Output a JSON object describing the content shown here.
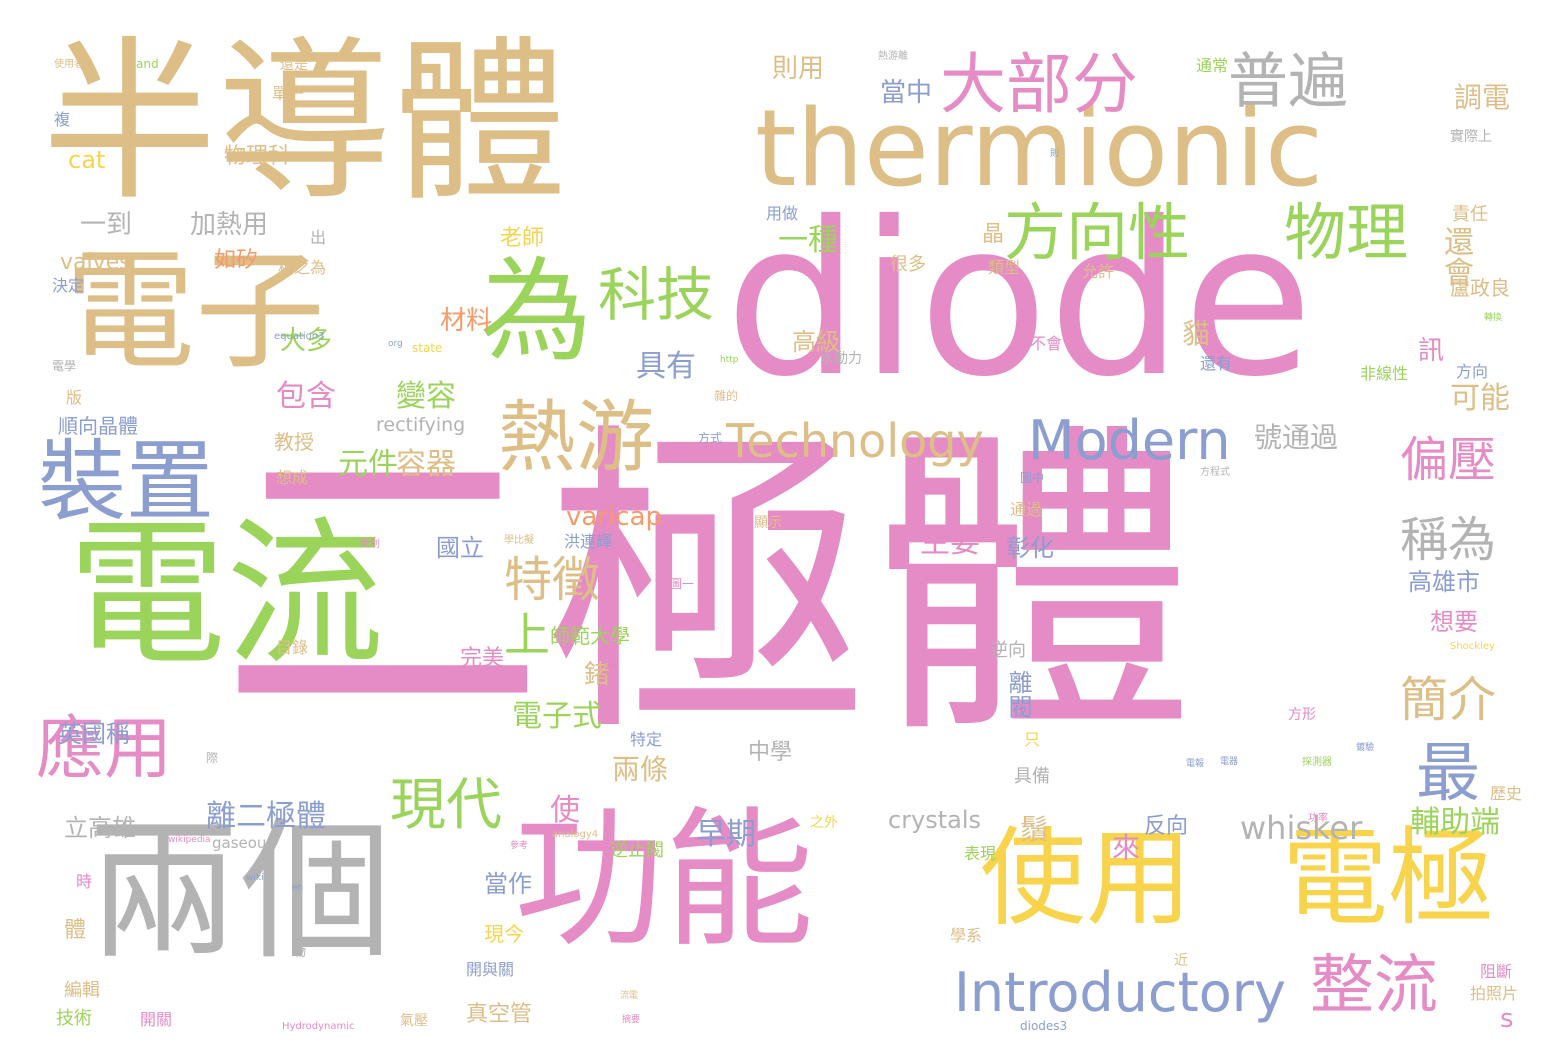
{
  "palette": {
    "tan": "#DDBE87",
    "pink": "#E58BC5",
    "green": "#9BD45A",
    "gray": "#B3B3B3",
    "blue": "#8C9ED0",
    "yellow": "#F7D44B",
    "orange": "#F79A6A",
    "white": "#FFFFFF"
  },
  "words": [
    {
      "text": "二極體",
      "color": "pink"
    },
    {
      "text": "diode",
      "color": "pink"
    },
    {
      "text": "半導體",
      "color": "tan"
    },
    {
      "text": "電流",
      "color": "green"
    },
    {
      "text": "兩個",
      "color": "gray"
    },
    {
      "text": "功能",
      "color": "pink"
    },
    {
      "text": "電子",
      "color": "tan"
    },
    {
      "text": "thermionic",
      "color": "tan"
    },
    {
      "text": "使用",
      "color": "yellow"
    },
    {
      "text": "電極",
      "color": "yellow"
    },
    {
      "text": "為",
      "color": "green"
    },
    {
      "text": "裝置",
      "color": "blue"
    },
    {
      "text": "熱游",
      "color": "tan"
    },
    {
      "text": "應用",
      "color": "pink"
    },
    {
      "text": "大部分",
      "color": "pink"
    },
    {
      "text": "普遍",
      "color": "gray"
    },
    {
      "text": "方向性",
      "color": "green"
    },
    {
      "text": "物理",
      "color": "green"
    },
    {
      "text": "科技",
      "color": "green"
    },
    {
      "text": "Modern",
      "color": "blue"
    },
    {
      "text": "Technology",
      "color": "tan"
    },
    {
      "text": "Introductory",
      "color": "blue"
    },
    {
      "text": "整流",
      "color": "pink"
    },
    {
      "text": "現代",
      "color": "green"
    },
    {
      "text": "最",
      "color": "blue"
    },
    {
      "text": "稱為",
      "color": "gray"
    },
    {
      "text": "偏壓",
      "color": "pink"
    },
    {
      "text": "簡介",
      "color": "tan"
    },
    {
      "text": "特徵",
      "color": "tan"
    },
    {
      "text": "上",
      "color": "green"
    },
    {
      "text": "whisker",
      "color": "gray"
    },
    {
      "text": "crystals",
      "color": "gray"
    },
    {
      "text": "離二極體",
      "color": "blue"
    },
    {
      "text": "varicap",
      "color": "orange"
    },
    {
      "text": "rectifying",
      "color": "gray"
    },
    {
      "text": "valves",
      "color": "tan"
    },
    {
      "text": "cat",
      "color": "yellow"
    },
    {
      "text": "gaseous",
      "color": "gray"
    },
    {
      "text": "一到",
      "color": "gray"
    },
    {
      "text": "加熱用",
      "color": "gray"
    },
    {
      "text": "如矽",
      "color": "orange"
    },
    {
      "text": "老師",
      "color": "yellow"
    },
    {
      "text": "一種",
      "color": "green"
    },
    {
      "text": "晶",
      "color": "tan"
    },
    {
      "text": "還會",
      "color": "tan"
    },
    {
      "text": "調電",
      "color": "tan"
    },
    {
      "text": "訊",
      "color": "pink"
    },
    {
      "text": "貓",
      "color": "tan"
    },
    {
      "text": "具有",
      "color": "blue"
    },
    {
      "text": "包含",
      "color": "pink"
    },
    {
      "text": "變容",
      "color": "green"
    },
    {
      "text": "元件",
      "color": "green"
    },
    {
      "text": "容器",
      "color": "tan"
    },
    {
      "text": "材料",
      "color": "orange"
    },
    {
      "text": "大多",
      "color": "green"
    },
    {
      "text": "號通過",
      "color": "gray"
    },
    {
      "text": "可能",
      "color": "tan"
    },
    {
      "text": "高級",
      "color": "tan"
    },
    {
      "text": "當中",
      "color": "blue"
    },
    {
      "text": "則用",
      "color": "tan"
    },
    {
      "text": "物理科",
      "color": "tan"
    },
    {
      "text": "電子式",
      "color": "green"
    },
    {
      "text": "早期",
      "color": "blue"
    },
    {
      "text": "兩條",
      "color": "tan"
    },
    {
      "text": "使",
      "color": "pink"
    },
    {
      "text": "鬚",
      "color": "tan"
    },
    {
      "text": "來",
      "color": "pink"
    },
    {
      "text": "反向",
      "color": "blue"
    },
    {
      "text": "輔助端",
      "color": "green"
    },
    {
      "text": "主要",
      "color": "pink"
    },
    {
      "text": "彰化",
      "color": "blue"
    },
    {
      "text": "國立",
      "color": "blue"
    },
    {
      "text": "洪連輝",
      "color": "blue"
    },
    {
      "text": "師範大學",
      "color": "green"
    },
    {
      "text": "完美",
      "color": "pink"
    },
    {
      "text": "鍺",
      "color": "tan"
    },
    {
      "text": "英國稱",
      "color": "blue"
    },
    {
      "text": "立高雄",
      "color": "gray"
    },
    {
      "text": "當作",
      "color": "blue"
    },
    {
      "text": "現今",
      "color": "yellow"
    },
    {
      "text": "體",
      "color": "tan"
    },
    {
      "text": "真空管",
      "color": "tan"
    },
    {
      "text": "高雄市",
      "color": "blue"
    },
    {
      "text": "想要",
      "color": "pink"
    },
    {
      "text": "離閥",
      "color": "blue"
    },
    {
      "text": "順向晶體",
      "color": "blue"
    },
    {
      "text": "教授",
      "color": "tan"
    },
    {
      "text": "中學",
      "color": "gray"
    },
    {
      "text": "s",
      "color": "pink"
    },
    {
      "text": "盧政良",
      "color": "tan"
    },
    {
      "text": "方向",
      "color": "blue"
    },
    {
      "text": "非線性",
      "color": "green"
    },
    {
      "text": "歷史",
      "color": "tan"
    },
    {
      "text": "實際上",
      "color": "gray"
    },
    {
      "text": "責任",
      "color": "tan"
    },
    {
      "text": "通常",
      "color": "green"
    },
    {
      "text": "拍照片",
      "color": "tan"
    },
    {
      "text": "阻斷",
      "color": "pink"
    },
    {
      "text": "逆止閥",
      "color": "green"
    },
    {
      "text": "編輯",
      "color": "tan"
    },
    {
      "text": "技術",
      "color": "green"
    },
    {
      "text": "開關",
      "color": "pink"
    },
    {
      "text": "開與關",
      "color": "blue"
    },
    {
      "text": "學系",
      "color": "tan"
    },
    {
      "text": "氣壓",
      "color": "tan"
    },
    {
      "text": "表現",
      "color": "green"
    },
    {
      "text": "逆向",
      "color": "gray"
    },
    {
      "text": "具備",
      "color": "gray"
    },
    {
      "text": "只",
      "color": "yellow"
    },
    {
      "text": "通過",
      "color": "tan"
    },
    {
      "text": "顯示",
      "color": "tan"
    },
    {
      "text": "特定",
      "color": "blue"
    },
    {
      "text": "想成",
      "color": "tan"
    },
    {
      "text": "目錄",
      "color": "tan"
    },
    {
      "text": "版",
      "color": "tan"
    },
    {
      "text": "時",
      "color": "pink"
    },
    {
      "text": "決定",
      "color": "blue"
    },
    {
      "text": "電學",
      "color": "gray"
    },
    {
      "text": "複",
      "color": "blue"
    },
    {
      "text": "稱之為",
      "color": "tan"
    },
    {
      "text": "允許",
      "color": "tan"
    },
    {
      "text": "類型",
      "color": "tan"
    },
    {
      "text": "很多",
      "color": "tan"
    },
    {
      "text": "並不會",
      "color": "pink"
    },
    {
      "text": "還有",
      "color": "blue"
    },
    {
      "text": "水動力",
      "color": "gray"
    },
    {
      "text": "用做",
      "color": "blue"
    },
    {
      "text": "出",
      "color": "gray"
    },
    {
      "text": "單一",
      "color": "tan"
    },
    {
      "text": "還是",
      "color": "tan"
    },
    {
      "text": "and",
      "color": "green"
    },
    {
      "text": "使用者",
      "color": "tan"
    },
    {
      "text": "Hydrodynamic",
      "color": "pink"
    },
    {
      "text": "diodes3",
      "color": "blue"
    },
    {
      "text": "Shockley",
      "color": "yellow"
    },
    {
      "text": "state",
      "color": "yellow"
    },
    {
      "text": "equation3",
      "color": "blue"
    },
    {
      "text": "analogy4",
      "color": "tan"
    },
    {
      "text": "wikipedia",
      "color": "pink"
    },
    {
      "text": "org",
      "color": "blue"
    },
    {
      "text": "http",
      "color": "green"
    },
    {
      "text": "wiki",
      "color": "blue"
    },
    {
      "text": "en",
      "color": "blue"
    },
    {
      "text": "之外",
      "color": "yellow"
    },
    {
      "text": "方形",
      "color": "pink"
    },
    {
      "text": "方程式",
      "color": "gray"
    },
    {
      "text": "圖中",
      "color": "blue"
    },
    {
      "text": "圖一",
      "color": "pink"
    },
    {
      "text": "方式",
      "color": "blue"
    },
    {
      "text": "雜的",
      "color": "tan"
    },
    {
      "text": "熱游離",
      "color": "gray"
    },
    {
      "text": "數",
      "color": "tan"
    },
    {
      "text": "則",
      "color": "blue"
    },
    {
      "text": "電器",
      "color": "blue"
    },
    {
      "text": "學比擬",
      "color": "tan"
    },
    {
      "text": "死利",
      "color": "pink"
    },
    {
      "text": "參考",
      "color": "pink"
    },
    {
      "text": "際",
      "color": "gray"
    },
    {
      "text": "近",
      "color": "tan"
    },
    {
      "text": "物",
      "color": "gray"
    },
    {
      "text": "功率",
      "color": "pink"
    },
    {
      "text": "探測器",
      "color": "green"
    },
    {
      "text": "電報",
      "color": "blue"
    },
    {
      "text": "鍍驗",
      "color": "blue"
    },
    {
      "text": "轉換",
      "color": "green"
    },
    {
      "text": "流電",
      "color": "tan"
    },
    {
      "text": "摘要",
      "color": "pink"
    }
  ]
}
